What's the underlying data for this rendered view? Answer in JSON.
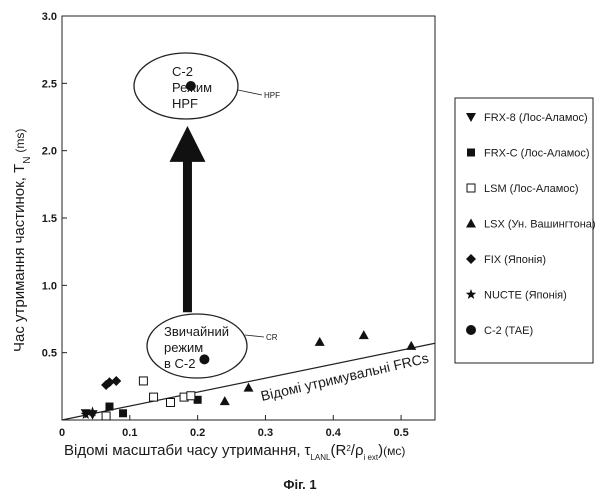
{
  "chart_data": {
    "type": "scatter",
    "title": "",
    "xlabel": "Відомі масштаби часу утримання,",
    "xlabel_symbol": "τ",
    "xlabel_subscript": "LANL",
    "xlabel_formula_left": "(R",
    "xlabel_formula_sup": "2",
    "xlabel_formula_mid": "/ρ",
    "xlabel_formula_sub": "i ext",
    "xlabel_formula_right": ")",
    "xlabel_unit": "(мс)",
    "ylabel": "Час утримання частинок, T",
    "ylabel_subscript": "N",
    "ylabel_unit": "(ms)",
    "xlim": [
      0,
      0.55
    ],
    "ylim": [
      0,
      3.0
    ],
    "x_ticks": [
      0,
      0.1,
      0.2,
      0.3,
      0.4,
      0.5
    ],
    "x_tick_labels": [
      "0",
      "0.1",
      "0.2",
      "0.3",
      "0.4",
      "0.5"
    ],
    "y_ticks": [
      0.5,
      1.0,
      1.5,
      2.0,
      2.5,
      3.0
    ],
    "y_tick_labels": [
      "0.5",
      "1.0",
      "1.5",
      "2.0",
      "2.5",
      "3.0"
    ],
    "grid": false,
    "legend_position": "right",
    "series": [
      {
        "name": "FRX-8 (Лос-Аламос)",
        "marker": "triangle-down",
        "points": [
          [
            0.035,
            0.05
          ],
          [
            0.045,
            0.04
          ]
        ]
      },
      {
        "name": "FRX-C (Лос-Аламос)",
        "marker": "square",
        "points": [
          [
            0.07,
            0.1
          ],
          [
            0.09,
            0.05
          ],
          [
            0.2,
            0.15
          ]
        ]
      },
      {
        "name": "LSM (Лос-Аламос)",
        "marker": "square-open",
        "points": [
          [
            0.065,
            0.03
          ],
          [
            0.12,
            0.29
          ],
          [
            0.135,
            0.17
          ],
          [
            0.16,
            0.13
          ],
          [
            0.18,
            0.17
          ],
          [
            0.19,
            0.18
          ]
        ]
      },
      {
        "name": "LSX (Ун. Вашингтона)",
        "marker": "triangle-up",
        "points": [
          [
            0.24,
            0.14
          ],
          [
            0.275,
            0.24
          ],
          [
            0.38,
            0.58
          ],
          [
            0.445,
            0.63
          ],
          [
            0.515,
            0.55
          ]
        ]
      },
      {
        "name": "FIX (Японія)",
        "marker": "diamond",
        "points": [
          [
            0.065,
            0.26
          ],
          [
            0.07,
            0.28
          ],
          [
            0.08,
            0.29
          ]
        ]
      },
      {
        "name": "NUCTE (Японія)",
        "marker": "star",
        "points": [
          [
            0.035,
            0.04
          ],
          [
            0.045,
            0.06
          ]
        ]
      },
      {
        "name": "C-2 (ТАЕ)",
        "marker": "circle",
        "points": [
          [
            0.21,
            0.45
          ],
          [
            0.19,
            2.48
          ]
        ]
      }
    ],
    "trend_line": {
      "label": "Відомі утримувальні FRCs",
      "from": [
        0,
        0
      ],
      "to": [
        0.55,
        0.57
      ]
    },
    "arrow": {
      "from": [
        0.185,
        0.8
      ],
      "to": [
        0.185,
        2.05
      ]
    },
    "annotations": [
      {
        "lines": [
          "C-2",
          "Режим",
          "HPF"
        ],
        "tag": "HPF"
      },
      {
        "lines": [
          "Звичайний",
          "режим",
          "в C-2"
        ],
        "tag": "CR"
      }
    ]
  },
  "caption": "Фіг. 1"
}
